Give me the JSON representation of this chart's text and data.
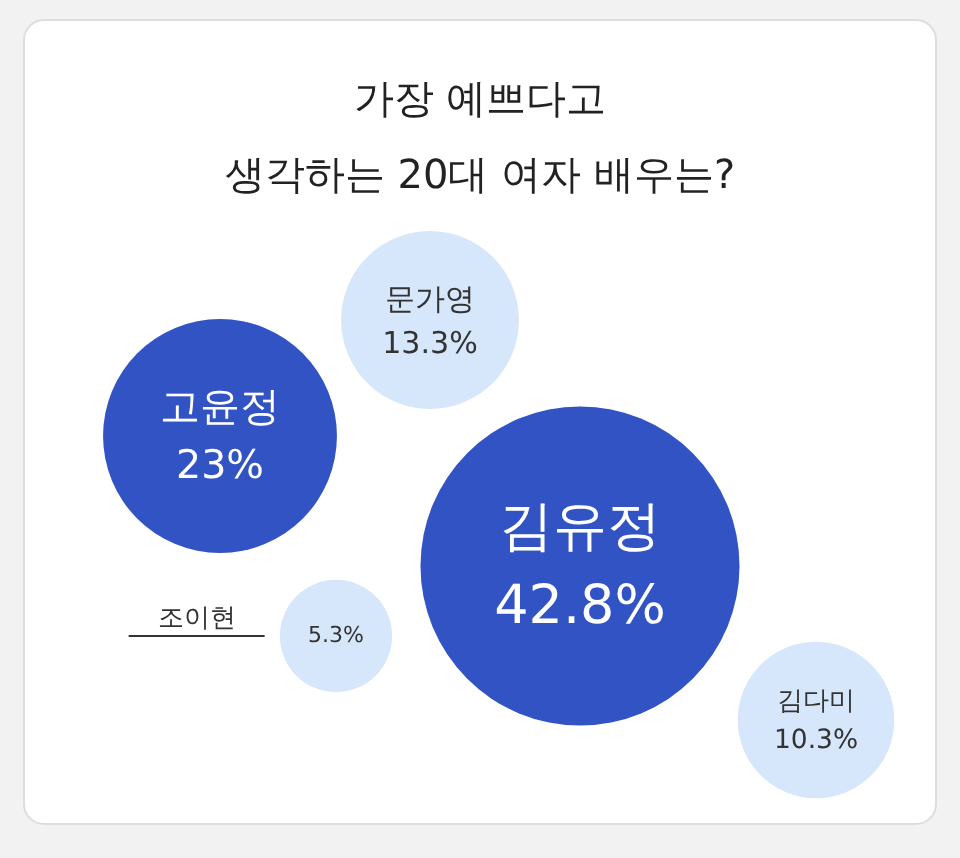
{
  "chart_data": {
    "type": "other",
    "title": "가장 예쁘다고\n생각하는 20대 여자 배우는?",
    "categories": [
      "고윤정",
      "문가영",
      "김유정",
      "조이현",
      "김다미"
    ],
    "values": [
      23,
      13.3,
      42.8,
      5.3,
      10.3
    ],
    "value_labels": [
      "23%",
      "13.3%",
      "42.8%",
      "5.3%",
      "10.3%"
    ],
    "colors": [
      "#3153c4",
      "#d6e6fb",
      "#3153c4",
      "#d6e6fb",
      "#d6e6fb"
    ]
  }
}
